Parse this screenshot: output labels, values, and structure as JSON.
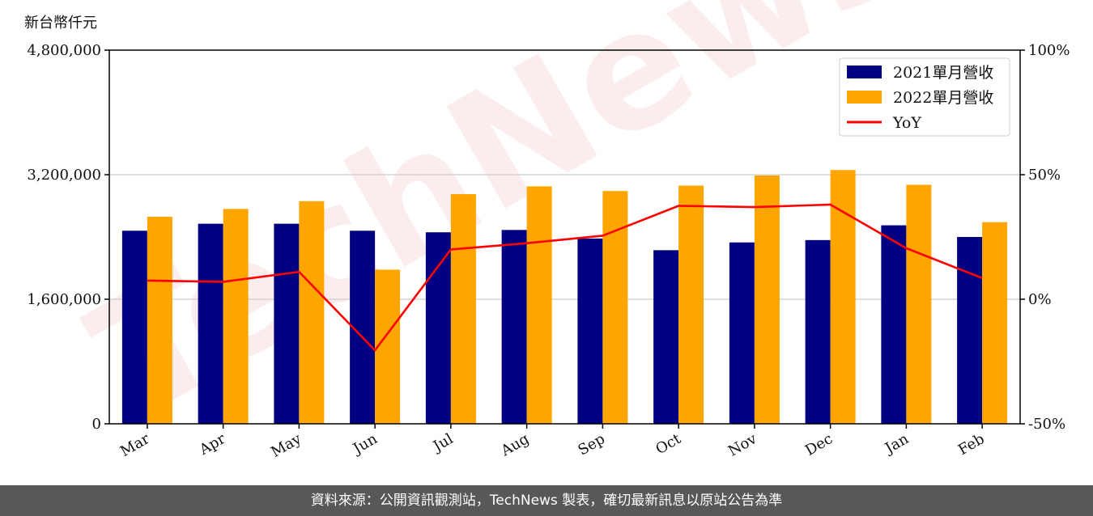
{
  "chart_data": {
    "type": "bar",
    "unit_label": "新台幣仟元",
    "categories": [
      "Mar",
      "Apr",
      "May",
      "Jun",
      "Jul",
      "Aug",
      "Sep",
      "Oct",
      "Nov",
      "Dec",
      "Jan",
      "Feb"
    ],
    "series": [
      {
        "name": "2021單月營收",
        "values": [
          2480000,
          2570000,
          2570000,
          2480000,
          2460000,
          2490000,
          2380000,
          2230000,
          2330000,
          2360000,
          2550000,
          2400000
        ],
        "color": "#000080"
      },
      {
        "name": "2022單月營收",
        "values": [
          2660000,
          2760000,
          2860000,
          1980000,
          2950000,
          3050000,
          2990000,
          3060000,
          3190000,
          3260000,
          3070000,
          2590000
        ],
        "color": "#FFA500"
      }
    ],
    "yoy": {
      "name": "YoY",
      "values": [
        7.5,
        7.0,
        11.0,
        -20.5,
        20.0,
        22.5,
        25.5,
        37.5,
        37.0,
        38.0,
        20.5,
        8.5
      ],
      "color": "#FF0000"
    },
    "y_left": {
      "ticks": [
        "0",
        "1,600,000",
        "3,200,000",
        "4,800,000"
      ],
      "range": [
        0,
        4800000
      ]
    },
    "y_right": {
      "ticks": [
        "-50%",
        "0%",
        "50%",
        "100%"
      ],
      "range": [
        -50,
        100
      ]
    },
    "grid": "horizontal",
    "legend_position": "top-right",
    "watermark": "TechNews"
  },
  "footer": {
    "text": "資料來源：公開資訊觀測站，TechNews 製表，確切最新訊息以原站公告為準"
  }
}
